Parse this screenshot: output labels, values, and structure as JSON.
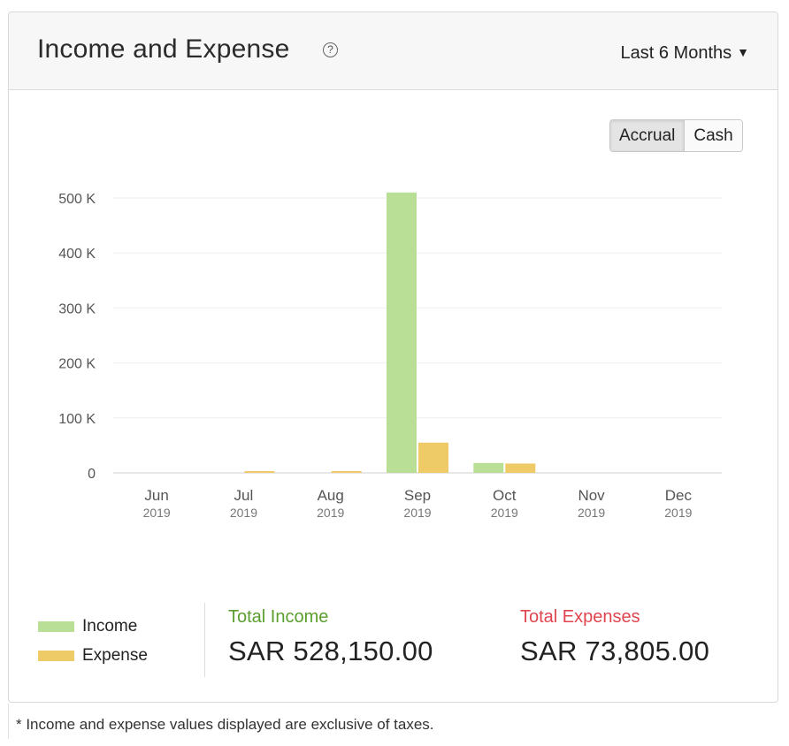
{
  "header": {
    "title": "Income and Expense",
    "help_icon": "?",
    "period_label": "Last 6 Months",
    "period_caret": "▼"
  },
  "basis_toggle": {
    "options": [
      "Accrual",
      "Cash"
    ],
    "selected": "Accrual"
  },
  "chart_data": {
    "type": "bar",
    "categories": [
      "Jun",
      "Jul",
      "Aug",
      "Sep",
      "Oct",
      "Nov",
      "Dec"
    ],
    "category_years": [
      "2019",
      "2019",
      "2019",
      "2019",
      "2019",
      "2019",
      "2019"
    ],
    "series": [
      {
        "name": "Income",
        "color": "#b8df95",
        "values": [
          0,
          0,
          0,
          510000,
          18000,
          0,
          0
        ]
      },
      {
        "name": "Expense",
        "color": "#eecb67",
        "values": [
          0,
          600,
          2500,
          55000,
          17000,
          0,
          0
        ]
      }
    ],
    "yticks": [
      0,
      100000,
      200000,
      300000,
      400000,
      500000
    ],
    "ytick_labels": [
      "0",
      "100 K",
      "200 K",
      "300 K",
      "400 K",
      "500 K"
    ],
    "ylim": [
      0,
      500000
    ],
    "grid": true,
    "legend_position": "bottom-left"
  },
  "legend": [
    {
      "label": "Income",
      "color": "#b8df95"
    },
    {
      "label": "Expense",
      "color": "#eecb67"
    }
  ],
  "totals": {
    "income_label": "Total Income",
    "income_amount": "SAR 528,150.00",
    "income_color": "#5a9e2f",
    "expense_label": "Total Expenses",
    "expense_amount": "SAR 73,805.00",
    "expense_color": "#e0454f"
  },
  "footnote": "* Income and expense values displayed are exclusive of taxes."
}
